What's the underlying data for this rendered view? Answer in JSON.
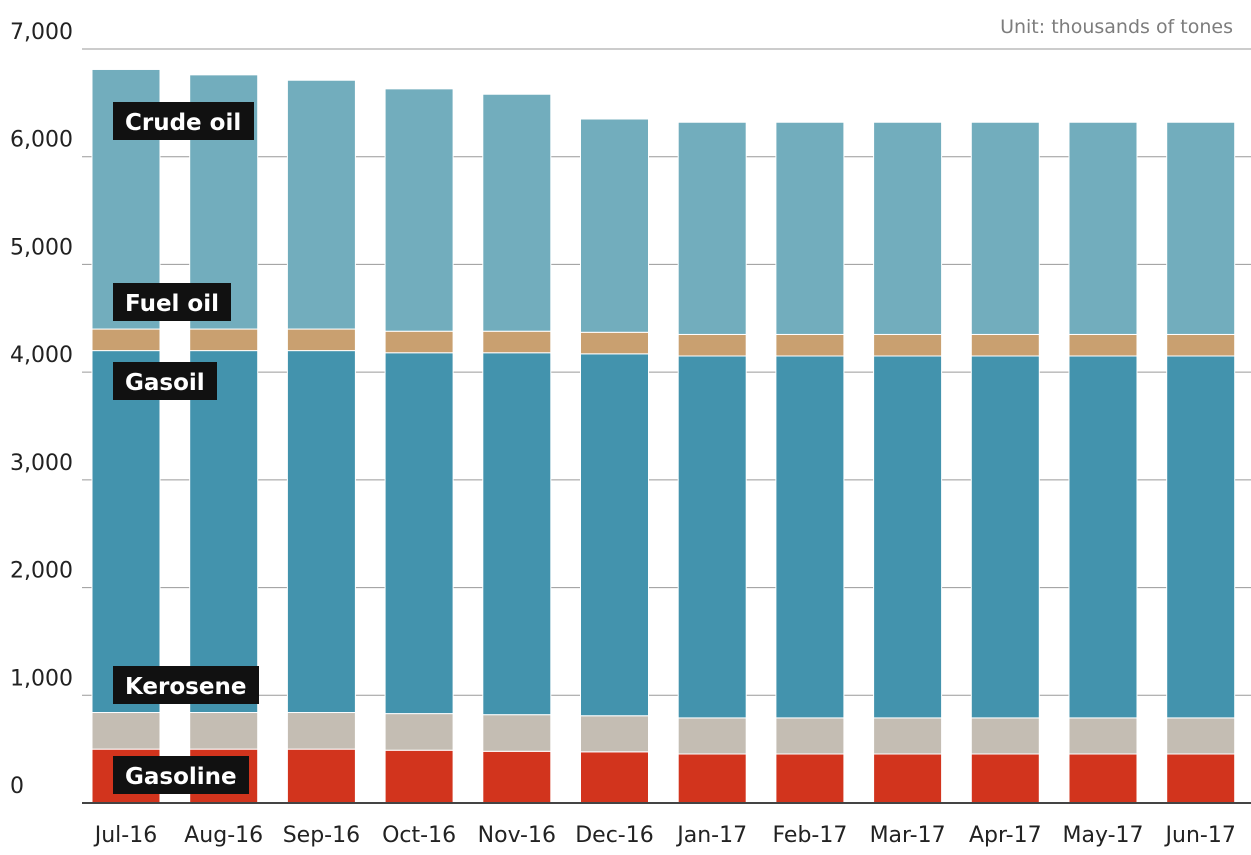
{
  "chart_data": {
    "type": "bar",
    "stacked": true,
    "unit_note": "Unit: thousands of tones",
    "title": "",
    "xlabel": "",
    "ylabel": "",
    "ylim": [
      0,
      7000
    ],
    "y_ticks": [
      "0",
      "1,000",
      "2,000",
      "3,000",
      "4,000",
      "5,000",
      "6,000",
      "7,000"
    ],
    "y_tick_values": [
      0,
      1000,
      2000,
      3000,
      4000,
      5000,
      6000,
      7000
    ],
    "grid": true,
    "categories": [
      "Jul-16",
      "Aug-16",
      "Sep-16",
      "Oct-16",
      "Nov-16",
      "Dec-16",
      "Jan-17",
      "Feb-17",
      "Mar-17",
      "Apr-17",
      "May-17",
      "Jun-17"
    ],
    "series": [
      {
        "name": "Gasoline",
        "color": "#d2341d",
        "values": [
          500,
          500,
          500,
          490,
          480,
          475,
          455,
          455,
          455,
          455,
          455,
          455
        ]
      },
      {
        "name": "Kerosene",
        "color": "#c4bdb3",
        "values": [
          340,
          340,
          340,
          340,
          340,
          335,
          335,
          335,
          335,
          335,
          335,
          335
        ]
      },
      {
        "name": "Gasoil",
        "color": "#4393ad",
        "values": [
          3360,
          3360,
          3360,
          3350,
          3360,
          3360,
          3360,
          3360,
          3360,
          3360,
          3360,
          3360
        ]
      },
      {
        "name": "Fuel oil",
        "color": "#c9a070",
        "values": [
          200,
          200,
          200,
          200,
          200,
          200,
          200,
          200,
          200,
          200,
          200,
          200
        ]
      },
      {
        "name": "Crude oil",
        "color": "#72adbd",
        "values": [
          2410,
          2360,
          2310,
          2250,
          2200,
          1980,
          1970,
          1970,
          1970,
          1970,
          1970,
          1970
        ]
      }
    ],
    "label_background": "#111111"
  }
}
